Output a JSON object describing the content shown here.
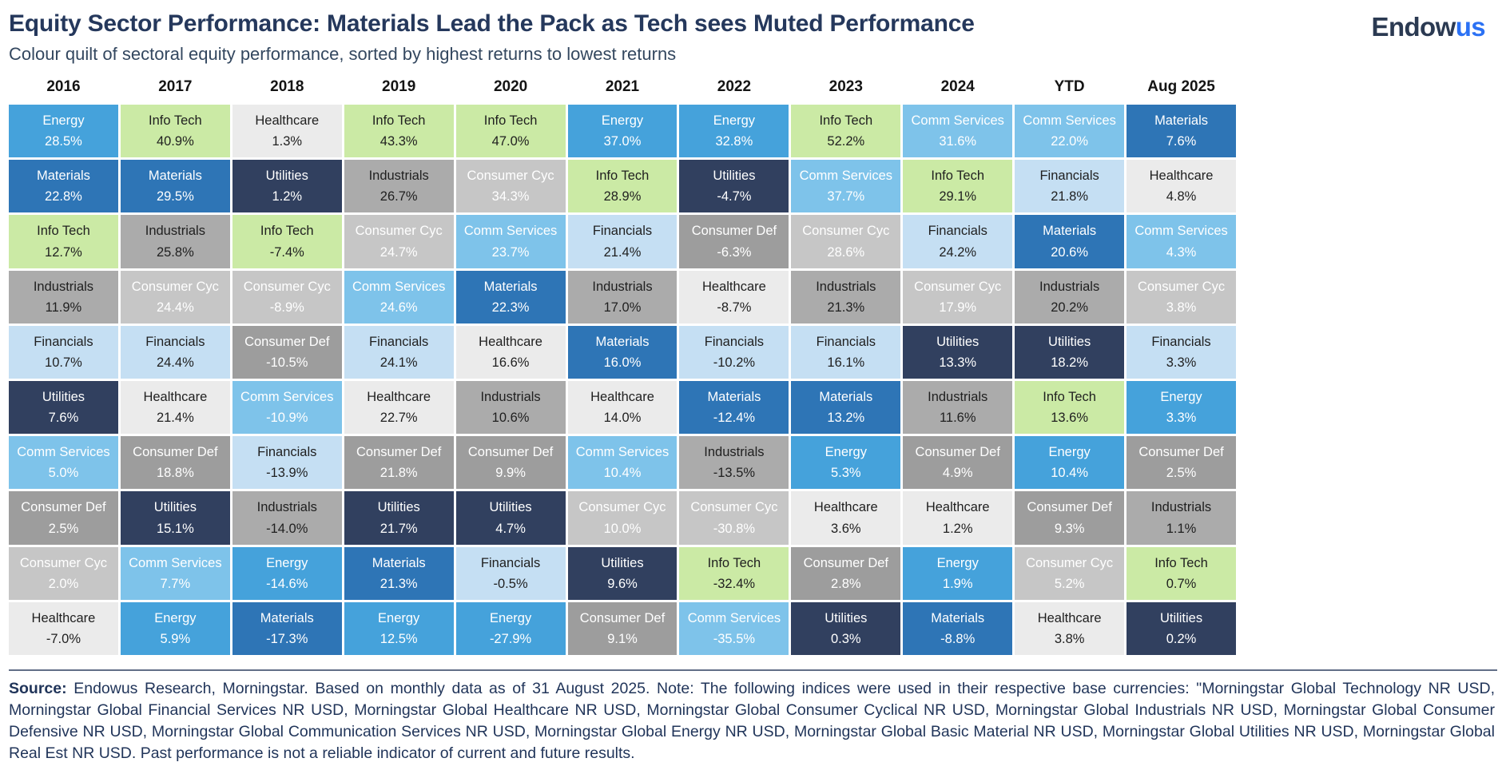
{
  "header": {
    "title": "Equity Sector Performance: Materials Lead the Pack as Tech sees Muted Performance",
    "subtitle": "Colour quilt of sectoral equity performance, sorted by highest returns to lowest returns",
    "logo": {
      "part1": "Endow",
      "part2": "us"
    }
  },
  "footnote": {
    "label": "Source:",
    "text": " Endowus Research, Morningstar. Based on monthly data as of 31 August 2025. Note: The following indices were used in their respective base currencies: \"Morningstar Global Technology NR USD, Morningstar Global Financial Services NR USD, Morningstar Global Healthcare NR USD, Morningstar Global Consumer Cyclical NR USD, Morningstar Global Industrials NR USD, Morningstar Global Consumer Defensive NR USD, Morningstar Global Communication Services NR USD, Morningstar Global Energy NR USD, Morningstar Global Basic Material NR USD, Morningstar Global Utilities NR USD, Morningstar Global Real Est NR USD. Past performance is not a reliable indicator of current and future results."
  },
  "chart_data": {
    "type": "heatmap",
    "title": "Equity Sector Performance: Materials Lead the Pack as Tech sees Muted Performance",
    "subtitle": "Colour quilt of sectoral equity performance, sorted by highest returns to lowest returns",
    "value_unit": "percent",
    "value_format": "one_decimal_percent",
    "legend_position": "none",
    "sector_styles": {
      "Energy": {
        "bg": "#45A2DB",
        "text": "#FFFFFF"
      },
      "Materials": {
        "bg": "#2E75B6",
        "text": "#FFFFFF"
      },
      "Info Tech": {
        "bg": "#CBEAA5",
        "text": "#1F1F1F"
      },
      "Industrials": {
        "bg": "#ABABAB",
        "text": "#1F1F1F"
      },
      "Financials": {
        "bg": "#C5DFF3",
        "text": "#1F1F1F"
      },
      "Healthcare": {
        "bg": "#EBEBEB",
        "text": "#1F1F1F"
      },
      "Utilities": {
        "bg": "#31405F",
        "text": "#FFFFFF"
      },
      "Comm Services": {
        "bg": "#7EC3EA",
        "text": "#FFFFFF"
      },
      "Consumer Def": {
        "bg": "#9D9D9D",
        "text": "#FFFFFF"
      },
      "Consumer Cyc": {
        "bg": "#C6C6C6",
        "text": "#FFFFFF"
      }
    },
    "columns": [
      {
        "label": "2016",
        "cells": [
          [
            "Energy",
            28.5
          ],
          [
            "Materials",
            22.8
          ],
          [
            "Info Tech",
            12.7
          ],
          [
            "Industrials",
            11.9
          ],
          [
            "Financials",
            10.7
          ],
          [
            "Utilities",
            7.6
          ],
          [
            "Comm Services",
            5.0
          ],
          [
            "Consumer Def",
            2.5
          ],
          [
            "Consumer Cyc",
            2.0
          ],
          [
            "Healthcare",
            -7.0
          ]
        ]
      },
      {
        "label": "2017",
        "cells": [
          [
            "Info Tech",
            40.9
          ],
          [
            "Materials",
            29.5
          ],
          [
            "Industrials",
            25.8
          ],
          [
            "Consumer Cyc",
            24.4
          ],
          [
            "Financials",
            24.4
          ],
          [
            "Healthcare",
            21.4
          ],
          [
            "Consumer Def",
            18.8
          ],
          [
            "Utilities",
            15.1
          ],
          [
            "Comm Services",
            7.7
          ],
          [
            "Energy",
            5.9
          ]
        ]
      },
      {
        "label": "2018",
        "cells": [
          [
            "Healthcare",
            1.3
          ],
          [
            "Utilities",
            1.2
          ],
          [
            "Info Tech",
            -7.4
          ],
          [
            "Consumer Cyc",
            -8.9
          ],
          [
            "Consumer Def",
            -10.5
          ],
          [
            "Comm Services",
            -10.9
          ],
          [
            "Financials",
            -13.9
          ],
          [
            "Industrials",
            -14.0
          ],
          [
            "Energy",
            -14.6
          ],
          [
            "Materials",
            -17.3
          ]
        ]
      },
      {
        "label": "2019",
        "cells": [
          [
            "Info Tech",
            43.3
          ],
          [
            "Industrials",
            26.7
          ],
          [
            "Consumer Cyc",
            24.7
          ],
          [
            "Comm Services",
            24.6
          ],
          [
            "Financials",
            24.1
          ],
          [
            "Healthcare",
            22.7
          ],
          [
            "Consumer Def",
            21.8
          ],
          [
            "Utilities",
            21.7
          ],
          [
            "Materials",
            21.3
          ],
          [
            "Energy",
            12.5
          ]
        ]
      },
      {
        "label": "2020",
        "cells": [
          [
            "Info Tech",
            47.0
          ],
          [
            "Consumer Cyc",
            34.3
          ],
          [
            "Comm Services",
            23.7
          ],
          [
            "Materials",
            22.3
          ],
          [
            "Healthcare",
            16.6
          ],
          [
            "Industrials",
            10.6
          ],
          [
            "Consumer Def",
            9.9
          ],
          [
            "Utilities",
            4.7
          ],
          [
            "Financials",
            -0.5
          ],
          [
            "Energy",
            -27.9
          ]
        ]
      },
      {
        "label": "2021",
        "cells": [
          [
            "Energy",
            37.0
          ],
          [
            "Info Tech",
            28.9
          ],
          [
            "Financials",
            21.4
          ],
          [
            "Industrials",
            17.0
          ],
          [
            "Materials",
            16.0
          ],
          [
            "Healthcare",
            14.0
          ],
          [
            "Comm Services",
            10.4
          ],
          [
            "Consumer Cyc",
            10.0
          ],
          [
            "Utilities",
            9.6
          ],
          [
            "Consumer Def",
            9.1
          ]
        ]
      },
      {
        "label": "2022",
        "cells": [
          [
            "Energy",
            32.8
          ],
          [
            "Utilities",
            -4.7
          ],
          [
            "Consumer Def",
            -6.3
          ],
          [
            "Healthcare",
            -8.7
          ],
          [
            "Financials",
            -10.2
          ],
          [
            "Materials",
            -12.4
          ],
          [
            "Industrials",
            -13.5
          ],
          [
            "Consumer Cyc",
            -30.8
          ],
          [
            "Info Tech",
            -32.4
          ],
          [
            "Comm Services",
            -35.5
          ]
        ]
      },
      {
        "label": "2023",
        "cells": [
          [
            "Info Tech",
            52.2
          ],
          [
            "Comm Services",
            37.7
          ],
          [
            "Consumer Cyc",
            28.6
          ],
          [
            "Industrials",
            21.3
          ],
          [
            "Financials",
            16.1
          ],
          [
            "Materials",
            13.2
          ],
          [
            "Energy",
            5.3
          ],
          [
            "Healthcare",
            3.6
          ],
          [
            "Consumer Def",
            2.8
          ],
          [
            "Utilities",
            0.3
          ]
        ]
      },
      {
        "label": "2024",
        "cells": [
          [
            "Comm Services",
            31.6
          ],
          [
            "Info Tech",
            29.1
          ],
          [
            "Financials",
            24.2
          ],
          [
            "Consumer Cyc",
            17.9
          ],
          [
            "Utilities",
            13.3
          ],
          [
            "Industrials",
            11.6
          ],
          [
            "Consumer Def",
            4.9
          ],
          [
            "Healthcare",
            1.2
          ],
          [
            "Energy",
            1.9
          ],
          [
            "Materials",
            -8.8
          ]
        ]
      },
      {
        "label": "YTD",
        "cells": [
          [
            "Comm Services",
            22.0
          ],
          [
            "Financials",
            21.8
          ],
          [
            "Materials",
            20.6
          ],
          [
            "Industrials",
            20.2
          ],
          [
            "Utilities",
            18.2
          ],
          [
            "Info Tech",
            13.6
          ],
          [
            "Energy",
            10.4
          ],
          [
            "Consumer Def",
            9.3
          ],
          [
            "Consumer Cyc",
            5.2
          ],
          [
            "Healthcare",
            3.8
          ]
        ]
      },
      {
        "label": "Aug 2025",
        "cells": [
          [
            "Materials",
            7.6
          ],
          [
            "Healthcare",
            4.8
          ],
          [
            "Comm Services",
            4.3
          ],
          [
            "Consumer Cyc",
            3.8
          ],
          [
            "Financials",
            3.3
          ],
          [
            "Energy",
            3.3
          ],
          [
            "Consumer Def",
            2.5
          ],
          [
            "Industrials",
            1.1
          ],
          [
            "Info Tech",
            0.7
          ],
          [
            "Utilities",
            0.2
          ]
        ]
      }
    ]
  }
}
